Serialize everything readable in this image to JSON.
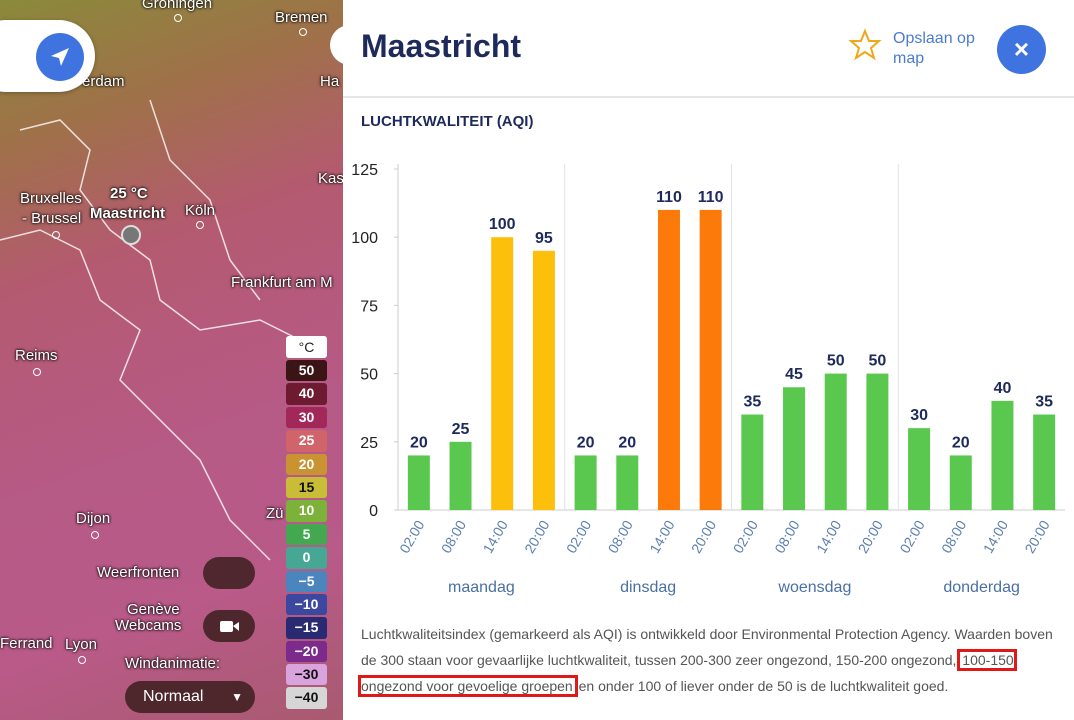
{
  "map": {
    "labels": [
      "Groningen",
      "Bremen",
      "erdam",
      "Ha",
      "Kas",
      "Bruxelles",
      "- Brussel",
      "25 °C",
      "Maastricht",
      "Köln",
      "Frankfurt am M",
      "Reims",
      "Dijon",
      "Zü",
      "Genève",
      "Lyon",
      "Ferrand"
    ],
    "controls": {
      "fronts": "Weerfronten",
      "webcams": "Webcams",
      "wind": "Windanimatie:",
      "wind_mode": "Normaal"
    },
    "temperature_legend": {
      "unit": "°C",
      "steps": [
        {
          "label": "50",
          "color": "#3b1416"
        },
        {
          "label": "40",
          "color": "#6e1a31"
        },
        {
          "label": "30",
          "color": "#a3285a"
        },
        {
          "label": "25",
          "color": "#d0646a"
        },
        {
          "label": "20",
          "color": "#c99331"
        },
        {
          "label": "15",
          "color": "#c9bc36"
        },
        {
          "label": "10",
          "color": "#7cb23a"
        },
        {
          "label": "5",
          "color": "#43a84f"
        },
        {
          "label": "0",
          "color": "#46a794"
        },
        {
          "label": "−5",
          "color": "#4a86bd"
        },
        {
          "label": "−10",
          "color": "#3c47a0"
        },
        {
          "label": "−15",
          "color": "#292a72"
        },
        {
          "label": "−20",
          "color": "#7c2a8c"
        },
        {
          "label": "−30",
          "color": "#d9a3de"
        },
        {
          "label": "−40",
          "color": "#d6d6d6"
        }
      ]
    }
  },
  "panel": {
    "title": "Maastricht",
    "save": "Opslaan op map",
    "close": "×",
    "section": "LUCHTKWALITEIT (AQI)",
    "description": {
      "before": "Luchtkwaliteitsindex (gemarkeerd als AQI) is ontwikkeld door Environmental Protection Agency. Waarden boven de 300 staan voor gevaarlijke luchtkwaliteit, tussen 200-300 zeer ongezond, 150-200 ongezond,",
      "highlight": "100-150 ongezond voor gevoelige groepen",
      "after": "en onder 100 of liever onder de 50 is de luchtkwaliteit goed."
    }
  },
  "chart_data": {
    "type": "bar",
    "categories": [
      "02:00",
      "08:00",
      "14:00",
      "20:00",
      "02:00",
      "08:00",
      "14:00",
      "20:00",
      "02:00",
      "08:00",
      "14:00",
      "20:00",
      "02:00",
      "08:00",
      "14:00",
      "20:00"
    ],
    "groups": [
      "maandag",
      "dinsdag",
      "woensdag",
      "donderdag"
    ],
    "values": [
      20,
      25,
      100,
      95,
      20,
      20,
      110,
      110,
      35,
      45,
      50,
      50,
      30,
      20,
      40,
      35
    ],
    "colors": [
      "#5ac84e",
      "#5ac84e",
      "#fbbf0c",
      "#fbbf0c",
      "#5ac84e",
      "#5ac84e",
      "#fb7a0a",
      "#fb7a0a",
      "#5ac84e",
      "#5ac84e",
      "#5ac84e",
      "#5ac84e",
      "#5ac84e",
      "#5ac84e",
      "#5ac84e",
      "#5ac84e"
    ],
    "ylim": [
      0,
      125
    ],
    "yticks": [
      0,
      25,
      50,
      75,
      100,
      125
    ]
  }
}
